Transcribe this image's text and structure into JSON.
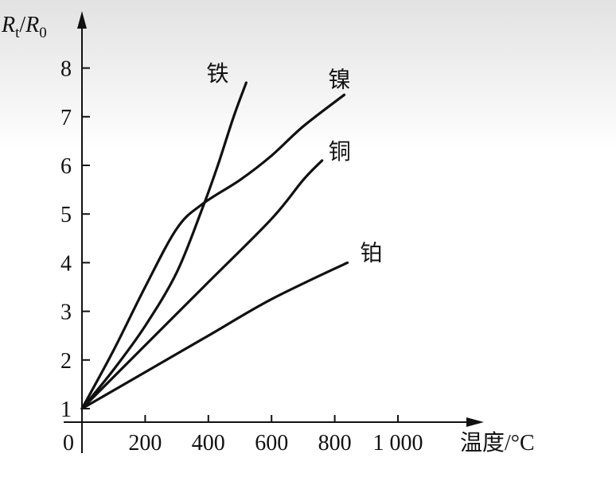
{
  "chart_data": {
    "type": "line",
    "ylabel_parts": {
      "r1": "R",
      "s1": "t",
      "slash": "/",
      "r2": "R",
      "s2": "0"
    },
    "xlabel": "温度/°C",
    "origin_label": "0",
    "x_ticks": [
      200,
      400,
      600,
      800,
      1000
    ],
    "x_tick_labels": [
      "200",
      "400",
      "600",
      "800",
      "1 000"
    ],
    "y_ticks": [
      1,
      2,
      3,
      4,
      5,
      6,
      7,
      8
    ],
    "y_tick_labels": [
      "1",
      "2",
      "3",
      "4",
      "5",
      "6",
      "7",
      "8"
    ],
    "xlim": [
      0,
      1250
    ],
    "ylim": [
      0.7,
      8.6
    ],
    "grid": false,
    "series": [
      {
        "name": "铁",
        "x": [
          0,
          100,
          200,
          300,
          380,
          430,
          480,
          520
        ],
        "y": [
          1,
          1.8,
          2.7,
          3.8,
          5.1,
          6.0,
          7.0,
          7.7
        ]
      },
      {
        "name": "镍",
        "x": [
          0,
          100,
          200,
          300,
          380,
          500,
          600,
          700,
          830
        ],
        "y": [
          1,
          2.2,
          3.5,
          4.7,
          5.2,
          5.7,
          6.2,
          6.8,
          7.45
        ]
      },
      {
        "name": "铜",
        "x": [
          0,
          200,
          400,
          600,
          700,
          760
        ],
        "y": [
          1,
          2.3,
          3.6,
          4.9,
          5.7,
          6.1
        ]
      },
      {
        "name": "铂",
        "x": [
          0,
          200,
          400,
          600,
          840
        ],
        "y": [
          1,
          1.75,
          2.5,
          3.25,
          4.0
        ]
      }
    ]
  }
}
